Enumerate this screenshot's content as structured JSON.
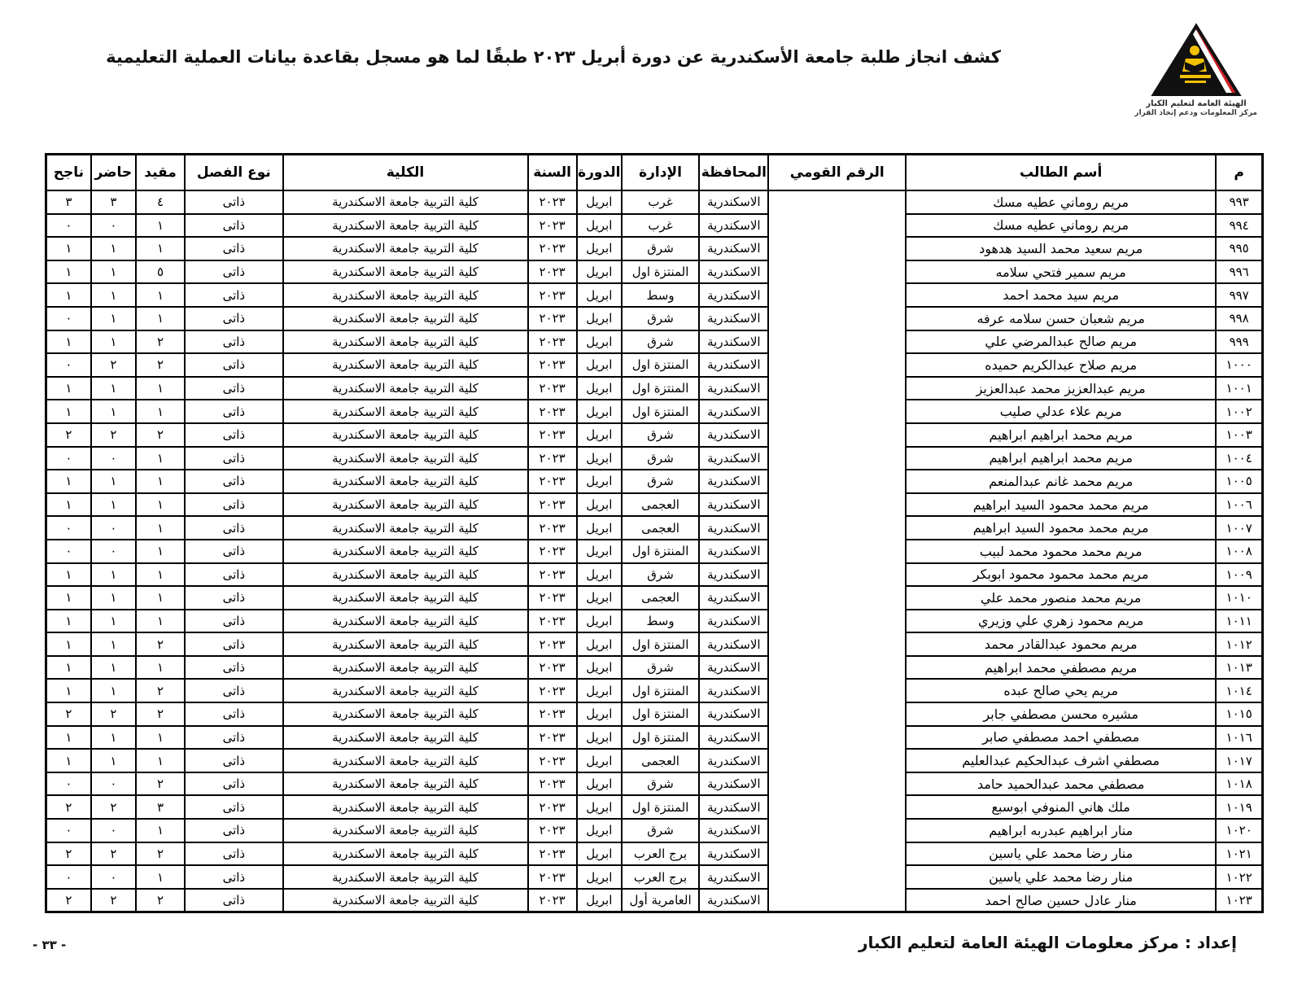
{
  "page": {
    "title": "كشف انجاز طلبة جامعة الأسكندرية عن دورة أبريل ٢٠٢٣ طبقًا لما هو مسجل بقاعدة بيانات العملية التعليمية",
    "footer_credit": "إعداد : مركز معلومات الهيئة العامة لتعليم الكبار",
    "page_number": "- ٣٣ -"
  },
  "logo": {
    "org_line1": "الهيئة العامة لتعليم الكبار",
    "org_line2": "مركز المعلومات ودعم إتخاذ القرار",
    "colors": {
      "black": "#111111",
      "red": "#d01f26",
      "yellow": "#f2c103",
      "white": "#ffffff"
    }
  },
  "table": {
    "headers": {
      "no": "م",
      "name": "أسم الطالب",
      "national_id": "الرقم القومي",
      "governorate": "المحافظة",
      "administration": "الإدارة",
      "session": "الدورة",
      "year": "السنة",
      "college": "الكلية",
      "class_type": "نوع الفصل",
      "enrolled": "مقيد",
      "present": "حاضر",
      "passed": "ناجح"
    },
    "rows": [
      {
        "no": "٩٩٣",
        "name": "مريم روماني عطيه مسك",
        "national_id": "",
        "governorate": "الاسكندرية",
        "administration": "غرب",
        "session": "ابريل",
        "year": "٢٠٢٣",
        "college": "كلية التربية جامعة الاسكندرية",
        "class_type": "ذاتى",
        "enrolled": "٤",
        "present": "٣",
        "passed": "٣"
      },
      {
        "no": "٩٩٤",
        "name": "مريم روماني عطيه مسك",
        "national_id": "",
        "governorate": "الاسكندرية",
        "administration": "غرب",
        "session": "ابريل",
        "year": "٢٠٢٣",
        "college": "كلية التربية جامعة الاسكندرية",
        "class_type": "ذاتى",
        "enrolled": "١",
        "present": "٠",
        "passed": "٠"
      },
      {
        "no": "٩٩٥",
        "name": "مريم سعيد محمد السيد هدهود",
        "national_id": "",
        "governorate": "الاسكندرية",
        "administration": "شرق",
        "session": "ابريل",
        "year": "٢٠٢٣",
        "college": "كلية التربية جامعة الاسكندرية",
        "class_type": "ذاتى",
        "enrolled": "١",
        "present": "١",
        "passed": "١"
      },
      {
        "no": "٩٩٦",
        "name": "مريم سمير فتحي سلامه",
        "national_id": "",
        "governorate": "الاسكندرية",
        "administration": "المنتزة اول",
        "session": "ابريل",
        "year": "٢٠٢٣",
        "college": "كلية التربية جامعة الاسكندرية",
        "class_type": "ذاتى",
        "enrolled": "٥",
        "present": "١",
        "passed": "١"
      },
      {
        "no": "٩٩٧",
        "name": "مريم سيد محمد احمد",
        "national_id": "",
        "governorate": "الاسكندرية",
        "administration": "وسط",
        "session": "ابريل",
        "year": "٢٠٢٣",
        "college": "كلية التربية جامعة الاسكندرية",
        "class_type": "ذاتى",
        "enrolled": "١",
        "present": "١",
        "passed": "١"
      },
      {
        "no": "٩٩٨",
        "name": "مريم شعبان حسن سلامه عرفه",
        "national_id": "",
        "governorate": "الاسكندرية",
        "administration": "شرق",
        "session": "ابريل",
        "year": "٢٠٢٣",
        "college": "كلية التربية جامعة الاسكندرية",
        "class_type": "ذاتى",
        "enrolled": "١",
        "present": "١",
        "passed": "٠"
      },
      {
        "no": "٩٩٩",
        "name": "مريم صالح عبدالمرضي علي",
        "national_id": "",
        "governorate": "الاسكندرية",
        "administration": "شرق",
        "session": "ابريل",
        "year": "٢٠٢٣",
        "college": "كلية التربية جامعة الاسكندرية",
        "class_type": "ذاتى",
        "enrolled": "٢",
        "present": "١",
        "passed": "١"
      },
      {
        "no": "١٠٠٠",
        "name": "مريم صلاح عبدالكريم حميده",
        "national_id": "",
        "governorate": "الاسكندرية",
        "administration": "المنتزة اول",
        "session": "ابريل",
        "year": "٢٠٢٣",
        "college": "كلية التربية جامعة الاسكندرية",
        "class_type": "ذاتى",
        "enrolled": "٢",
        "present": "٢",
        "passed": "٠"
      },
      {
        "no": "١٠٠١",
        "name": "مريم عبدالعزيز محمد عبدالعزيز",
        "national_id": "",
        "governorate": "الاسكندرية",
        "administration": "المنتزة اول",
        "session": "ابريل",
        "year": "٢٠٢٣",
        "college": "كلية التربية جامعة الاسكندرية",
        "class_type": "ذاتى",
        "enrolled": "١",
        "present": "١",
        "passed": "١"
      },
      {
        "no": "١٠٠٢",
        "name": "مريم علاء عدلي صليب",
        "national_id": "",
        "governorate": "الاسكندرية",
        "administration": "المنتزة اول",
        "session": "ابريل",
        "year": "٢٠٢٣",
        "college": "كلية التربية جامعة الاسكندرية",
        "class_type": "ذاتى",
        "enrolled": "١",
        "present": "١",
        "passed": "١"
      },
      {
        "no": "١٠٠٣",
        "name": "مريم محمد ابراهيم ابراهيم",
        "national_id": "",
        "governorate": "الاسكندرية",
        "administration": "شرق",
        "session": "ابريل",
        "year": "٢٠٢٣",
        "college": "كلية التربية جامعة الاسكندرية",
        "class_type": "ذاتى",
        "enrolled": "٢",
        "present": "٢",
        "passed": "٢"
      },
      {
        "no": "١٠٠٤",
        "name": "مريم محمد ابراهيم ابراهيم",
        "national_id": "",
        "governorate": "الاسكندرية",
        "administration": "شرق",
        "session": "ابريل",
        "year": "٢٠٢٣",
        "college": "كلية التربية جامعة الاسكندرية",
        "class_type": "ذاتى",
        "enrolled": "١",
        "present": "٠",
        "passed": "٠"
      },
      {
        "no": "١٠٠٥",
        "name": "مريم محمد غانم عبدالمنعم",
        "national_id": "",
        "governorate": "الاسكندرية",
        "administration": "شرق",
        "session": "ابريل",
        "year": "٢٠٢٣",
        "college": "كلية التربية جامعة الاسكندرية",
        "class_type": "ذاتى",
        "enrolled": "١",
        "present": "١",
        "passed": "١"
      },
      {
        "no": "١٠٠٦",
        "name": "مريم محمد محمود السيد ابراهيم",
        "national_id": "",
        "governorate": "الاسكندرية",
        "administration": "العجمى",
        "session": "ابريل",
        "year": "٢٠٢٣",
        "college": "كلية التربية جامعة الاسكندرية",
        "class_type": "ذاتى",
        "enrolled": "١",
        "present": "١",
        "passed": "١"
      },
      {
        "no": "١٠٠٧",
        "name": "مريم محمد محمود السيد ابراهيم",
        "national_id": "",
        "governorate": "الاسكندرية",
        "administration": "العجمى",
        "session": "ابريل",
        "year": "٢٠٢٣",
        "college": "كلية التربية جامعة الاسكندرية",
        "class_type": "ذاتى",
        "enrolled": "١",
        "present": "٠",
        "passed": "٠"
      },
      {
        "no": "١٠٠٨",
        "name": "مريم محمد محمود محمد لبيب",
        "national_id": "",
        "governorate": "الاسكندرية",
        "administration": "المنتزة اول",
        "session": "ابريل",
        "year": "٢٠٢٣",
        "college": "كلية التربية جامعة الاسكندرية",
        "class_type": "ذاتى",
        "enrolled": "١",
        "present": "٠",
        "passed": "٠"
      },
      {
        "no": "١٠٠٩",
        "name": "مريم محمد محمود محمود ابوبكر",
        "national_id": "",
        "governorate": "الاسكندرية",
        "administration": "شرق",
        "session": "ابريل",
        "year": "٢٠٢٣",
        "college": "كلية التربية جامعة الاسكندرية",
        "class_type": "ذاتى",
        "enrolled": "١",
        "present": "١",
        "passed": "١"
      },
      {
        "no": "١٠١٠",
        "name": "مريم محمد منصور محمد علي",
        "national_id": "",
        "governorate": "الاسكندرية",
        "administration": "العجمى",
        "session": "ابريل",
        "year": "٢٠٢٣",
        "college": "كلية التربية جامعة الاسكندرية",
        "class_type": "ذاتى",
        "enrolled": "١",
        "present": "١",
        "passed": "١"
      },
      {
        "no": "١٠١١",
        "name": "مريم محمود زهري علي وزيري",
        "national_id": "",
        "governorate": "الاسكندرية",
        "administration": "وسط",
        "session": "ابريل",
        "year": "٢٠٢٣",
        "college": "كلية التربية جامعة الاسكندرية",
        "class_type": "ذاتى",
        "enrolled": "١",
        "present": "١",
        "passed": "١"
      },
      {
        "no": "١٠١٢",
        "name": "مريم محمود عبدالقادر محمد",
        "national_id": "",
        "governorate": "الاسكندرية",
        "administration": "المنتزة اول",
        "session": "ابريل",
        "year": "٢٠٢٣",
        "college": "كلية التربية جامعة الاسكندرية",
        "class_type": "ذاتى",
        "enrolled": "٢",
        "present": "١",
        "passed": "١"
      },
      {
        "no": "١٠١٣",
        "name": "مريم مصطفي محمد ابراهيم",
        "national_id": "",
        "governorate": "الاسكندرية",
        "administration": "شرق",
        "session": "ابريل",
        "year": "٢٠٢٣",
        "college": "كلية التربية جامعة الاسكندرية",
        "class_type": "ذاتى",
        "enrolled": "١",
        "present": "١",
        "passed": "١"
      },
      {
        "no": "١٠١٤",
        "name": "مريم يحي صالح عبده",
        "national_id": "",
        "governorate": "الاسكندرية",
        "administration": "المنتزة اول",
        "session": "ابريل",
        "year": "٢٠٢٣",
        "college": "كلية التربية جامعة الاسكندرية",
        "class_type": "ذاتى",
        "enrolled": "٢",
        "present": "١",
        "passed": "١"
      },
      {
        "no": "١٠١٥",
        "name": "مشيره محسن مصطفي جابر",
        "national_id": "",
        "governorate": "الاسكندرية",
        "administration": "المنتزة اول",
        "session": "ابريل",
        "year": "٢٠٢٣",
        "college": "كلية التربية جامعة الاسكندرية",
        "class_type": "ذاتى",
        "enrolled": "٢",
        "present": "٢",
        "passed": "٢"
      },
      {
        "no": "١٠١٦",
        "name": "مصطفي احمد مصطفي صابر",
        "national_id": "",
        "governorate": "الاسكندرية",
        "administration": "المنتزة اول",
        "session": "ابريل",
        "year": "٢٠٢٣",
        "college": "كلية التربية جامعة الاسكندرية",
        "class_type": "ذاتى",
        "enrolled": "١",
        "present": "١",
        "passed": "١"
      },
      {
        "no": "١٠١٧",
        "name": "مصطفي اشرف عبدالحكيم عبدالعليم",
        "national_id": "",
        "governorate": "الاسكندرية",
        "administration": "العجمى",
        "session": "ابريل",
        "year": "٢٠٢٣",
        "college": "كلية التربية جامعة الاسكندرية",
        "class_type": "ذاتى",
        "enrolled": "١",
        "present": "١",
        "passed": "١"
      },
      {
        "no": "١٠١٨",
        "name": "مصطفي محمد عبدالحميد حامد",
        "national_id": "",
        "governorate": "الاسكندرية",
        "administration": "شرق",
        "session": "ابريل",
        "year": "٢٠٢٣",
        "college": "كلية التربية جامعة الاسكندرية",
        "class_type": "ذاتى",
        "enrolled": "٢",
        "present": "٠",
        "passed": "٠"
      },
      {
        "no": "١٠١٩",
        "name": "ملك هاني المنوفي ابوسبع",
        "national_id": "",
        "governorate": "الاسكندرية",
        "administration": "المنتزة اول",
        "session": "ابريل",
        "year": "٢٠٢٣",
        "college": "كلية التربية جامعة الاسكندرية",
        "class_type": "ذاتى",
        "enrolled": "٣",
        "present": "٢",
        "passed": "٢"
      },
      {
        "no": "١٠٢٠",
        "name": "منار ابراهيم عبدربه ابراهيم",
        "national_id": "",
        "governorate": "الاسكندرية",
        "administration": "شرق",
        "session": "ابريل",
        "year": "٢٠٢٣",
        "college": "كلية التربية جامعة الاسكندرية",
        "class_type": "ذاتى",
        "enrolled": "١",
        "present": "٠",
        "passed": "٠"
      },
      {
        "no": "١٠٢١",
        "name": "منار رضا محمد علي ياسين",
        "national_id": "",
        "governorate": "الاسكندرية",
        "administration": "برج العرب",
        "session": "ابريل",
        "year": "٢٠٢٣",
        "college": "كلية التربية جامعة الاسكندرية",
        "class_type": "ذاتى",
        "enrolled": "٢",
        "present": "٢",
        "passed": "٢"
      },
      {
        "no": "١٠٢٢",
        "name": "منار رضا محمد علي ياسين",
        "national_id": "",
        "governorate": "الاسكندرية",
        "administration": "برج العرب",
        "session": "ابريل",
        "year": "٢٠٢٣",
        "college": "كلية التربية جامعة الاسكندرية",
        "class_type": "ذاتى",
        "enrolled": "١",
        "present": "٠",
        "passed": "٠"
      },
      {
        "no": "١٠٢٣",
        "name": "منار عادل حسين صالح احمد",
        "national_id": "",
        "governorate": "الاسكندرية",
        "administration": "العامرية أول",
        "session": "ابريل",
        "year": "٢٠٢٣",
        "college": "كلية التربية جامعة الاسكندرية",
        "class_type": "ذاتى",
        "enrolled": "٢",
        "present": "٢",
        "passed": "٢"
      }
    ]
  }
}
